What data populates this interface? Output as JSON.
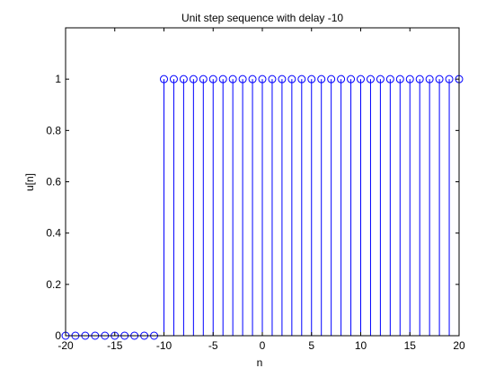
{
  "chart_data": {
    "type": "stem",
    "title": "Unit step sequence with delay -10",
    "xlabel": "n",
    "ylabel": "u[n]",
    "xlim": [
      -20,
      20
    ],
    "ylim": [
      0,
      1.2
    ],
    "xticks": [
      -20,
      -15,
      -10,
      -5,
      0,
      5,
      10,
      15,
      20
    ],
    "yticks": [
      0,
      0.2,
      0.4,
      0.6,
      0.8,
      1
    ],
    "xtick_labels": [
      "-20",
      "-15",
      "-10",
      "-5",
      "0",
      "5",
      "10",
      "15",
      "20"
    ],
    "ytick_labels": [
      "0",
      "0.2",
      "0.4",
      "0.6",
      "0.8",
      "1"
    ],
    "grid": false,
    "series": [
      {
        "x": [
          -20,
          -19,
          -18,
          -17,
          -16,
          -15,
          -14,
          -13,
          -12,
          -11,
          -10,
          -9,
          -8,
          -7,
          -6,
          -5,
          -4,
          -3,
          -2,
          -1,
          0,
          1,
          2,
          3,
          4,
          5,
          6,
          7,
          8,
          9,
          10,
          11,
          12,
          13,
          14,
          15,
          16,
          17,
          18,
          19,
          20
        ],
        "y": [
          0,
          0,
          0,
          0,
          0,
          0,
          0,
          0,
          0,
          0,
          1,
          1,
          1,
          1,
          1,
          1,
          1,
          1,
          1,
          1,
          1,
          1,
          1,
          1,
          1,
          1,
          1,
          1,
          1,
          1,
          1,
          1,
          1,
          1,
          1,
          1,
          1,
          1,
          1,
          1,
          1
        ],
        "color": "#0000ff",
        "marker": "circle"
      }
    ]
  }
}
